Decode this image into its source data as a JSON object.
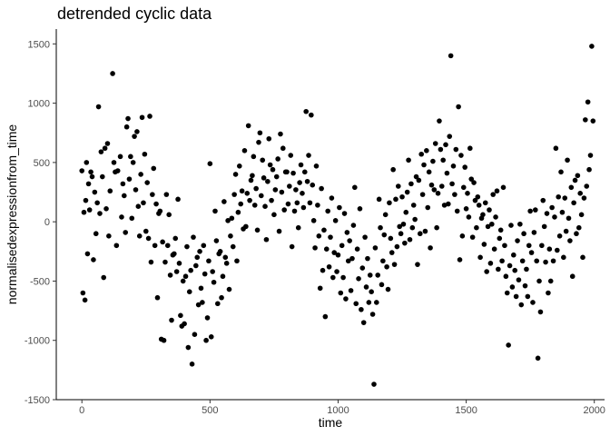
{
  "chart_data": {
    "type": "scatter",
    "title": "detrended cyclic data",
    "xlabel": "time",
    "ylabel": "normalisedexpressionfrom_time",
    "xlim": [
      -100,
      2040
    ],
    "ylim": [
      -1500,
      1625
    ],
    "x_ticks": [
      0,
      500,
      1000,
      1500,
      2000
    ],
    "y_ticks": [
      -1500,
      -1000,
      -500,
      0,
      500,
      1000,
      1500
    ],
    "x_tick_labels": [
      "0",
      "500",
      "1000",
      "1500",
      "2000"
    ],
    "y_tick_labels": [
      "-1500",
      "-1000",
      "-500",
      "0",
      "500",
      "1000",
      "1500"
    ],
    "grid": false,
    "legend": "none",
    "point_color": "#000000",
    "points": [
      [
        0,
        430
      ],
      [
        4,
        -600
      ],
      [
        8,
        80
      ],
      [
        12,
        -660
      ],
      [
        15,
        180
      ],
      [
        18,
        500
      ],
      [
        22,
        -270
      ],
      [
        26,
        320
      ],
      [
        30,
        100
      ],
      [
        35,
        420
      ],
      [
        40,
        380
      ],
      [
        45,
        -320
      ],
      [
        50,
        250
      ],
      [
        55,
        -100
      ],
      [
        60,
        160
      ],
      [
        65,
        970
      ],
      [
        70,
        70
      ],
      [
        75,
        590
      ],
      [
        80,
        380
      ],
      [
        85,
        -470
      ],
      [
        90,
        620
      ],
      [
        95,
        110
      ],
      [
        100,
        660
      ],
      [
        105,
        -120
      ],
      [
        110,
        260
      ],
      [
        120,
        1250
      ],
      [
        125,
        500
      ],
      [
        130,
        420
      ],
      [
        135,
        -200
      ],
      [
        140,
        430
      ],
      [
        150,
        550
      ],
      [
        155,
        40
      ],
      [
        160,
        320
      ],
      [
        165,
        220
      ],
      [
        170,
        -90
      ],
      [
        175,
        800
      ],
      [
        180,
        870
      ],
      [
        185,
        360
      ],
      [
        190,
        550
      ],
      [
        195,
        30
      ],
      [
        200,
        500
      ],
      [
        205,
        720
      ],
      [
        210,
        270
      ],
      [
        215,
        760
      ],
      [
        220,
        130
      ],
      [
        225,
        -120
      ],
      [
        230,
        400
      ],
      [
        235,
        880
      ],
      [
        240,
        160
      ],
      [
        245,
        570
      ],
      [
        250,
        -80
      ],
      [
        255,
        330
      ],
      [
        260,
        -140
      ],
      [
        265,
        890
      ],
      [
        270,
        -340
      ],
      [
        275,
        230
      ],
      [
        280,
        450
      ],
      [
        285,
        -200
      ],
      [
        290,
        150
      ],
      [
        295,
        -640
      ],
      [
        300,
        70
      ],
      [
        305,
        90
      ],
      [
        310,
        -990
      ],
      [
        315,
        -170
      ],
      [
        320,
        -1000
      ],
      [
        325,
        -340
      ],
      [
        330,
        230
      ],
      [
        335,
        -200
      ],
      [
        340,
        60
      ],
      [
        345,
        -450
      ],
      [
        350,
        -830
      ],
      [
        355,
        -280
      ],
      [
        360,
        -270
      ],
      [
        365,
        -140
      ],
      [
        370,
        -420
      ],
      [
        375,
        190
      ],
      [
        380,
        -350
      ],
      [
        385,
        -790
      ],
      [
        390,
        -880
      ],
      [
        395,
        -500
      ],
      [
        400,
        -860
      ],
      [
        405,
        -460
      ],
      [
        410,
        -210
      ],
      [
        415,
        -1060
      ],
      [
        420,
        -590
      ],
      [
        425,
        -410
      ],
      [
        430,
        -1200
      ],
      [
        435,
        -130
      ],
      [
        440,
        -950
      ],
      [
        445,
        -370
      ],
      [
        450,
        -300
      ],
      [
        455,
        -700
      ],
      [
        460,
        -250
      ],
      [
        465,
        -560
      ],
      [
        470,
        -680
      ],
      [
        475,
        -200
      ],
      [
        480,
        -440
      ],
      [
        485,
        -1000
      ],
      [
        490,
        -810
      ],
      [
        495,
        -330
      ],
      [
        500,
        490
      ],
      [
        505,
        -970
      ],
      [
        510,
        -420
      ],
      [
        515,
        -510
      ],
      [
        520,
        90
      ],
      [
        525,
        -160
      ],
      [
        530,
        -690
      ],
      [
        535,
        -270
      ],
      [
        540,
        -250
      ],
      [
        545,
        -640
      ],
      [
        550,
        -460
      ],
      [
        555,
        170
      ],
      [
        560,
        -300
      ],
      [
        565,
        -350
      ],
      [
        570,
        10
      ],
      [
        575,
        -570
      ],
      [
        580,
        -120
      ],
      [
        585,
        30
      ],
      [
        590,
        -210
      ],
      [
        595,
        230
      ],
      [
        600,
        400
      ],
      [
        605,
        -330
      ],
      [
        610,
        80
      ],
      [
        615,
        470
      ],
      [
        620,
        150
      ],
      [
        625,
        260
      ],
      [
        630,
        -60
      ],
      [
        635,
        600
      ],
      [
        640,
        -40
      ],
      [
        645,
        240
      ],
      [
        650,
        810
      ],
      [
        655,
        180
      ],
      [
        660,
        350
      ],
      [
        665,
        390
      ],
      [
        670,
        550
      ],
      [
        675,
        140
      ],
      [
        680,
        280
      ],
      [
        685,
        -70
      ],
      [
        690,
        670
      ],
      [
        695,
        750
      ],
      [
        700,
        220
      ],
      [
        705,
        520
      ],
      [
        710,
        370
      ],
      [
        715,
        130
      ],
      [
        720,
        -150
      ],
      [
        725,
        340
      ],
      [
        730,
        700
      ],
      [
        735,
        480
      ],
      [
        740,
        180
      ],
      [
        745,
        440
      ],
      [
        750,
        60
      ],
      [
        755,
        270
      ],
      [
        760,
        380
      ],
      [
        765,
        530
      ],
      [
        770,
        -80
      ],
      [
        775,
        740
      ],
      [
        780,
        250
      ],
      [
        785,
        620
      ],
      [
        790,
        100
      ],
      [
        795,
        420
      ],
      [
        800,
        420
      ],
      [
        805,
        150
      ],
      [
        810,
        300
      ],
      [
        815,
        560
      ],
      [
        820,
        -210
      ],
      [
        825,
        410
      ],
      [
        830,
        90
      ],
      [
        835,
        270
      ],
      [
        840,
        160
      ],
      [
        845,
        -50
      ],
      [
        850,
        330
      ],
      [
        855,
        480
      ],
      [
        860,
        240
      ],
      [
        865,
        120
      ],
      [
        870,
        420
      ],
      [
        875,
        930
      ],
      [
        880,
        340
      ],
      [
        885,
        560
      ],
      [
        890,
        160
      ],
      [
        895,
        900
      ],
      [
        900,
        310
      ],
      [
        905,
        10
      ],
      [
        910,
        -220
      ],
      [
        915,
        470
      ],
      [
        920,
        140
      ],
      [
        925,
        -120
      ],
      [
        930,
        -560
      ],
      [
        935,
        280
      ],
      [
        940,
        -410
      ],
      [
        945,
        -70
      ],
      [
        950,
        -800
      ],
      [
        955,
        -230
      ],
      [
        960,
        90
      ],
      [
        965,
        -380
      ],
      [
        970,
        -130
      ],
      [
        975,
        200
      ],
      [
        980,
        -470
      ],
      [
        985,
        -260
      ],
      [
        990,
        10
      ],
      [
        995,
        -420
      ],
      [
        1000,
        -280
      ],
      [
        1005,
        120
      ],
      [
        1010,
        -600
      ],
      [
        1015,
        -200
      ],
      [
        1020,
        -470
      ],
      [
        1025,
        70
      ],
      [
        1030,
        -650
      ],
      [
        1035,
        -90
      ],
      [
        1040,
        -330
      ],
      [
        1045,
        -160
      ],
      [
        1050,
        -580
      ],
      [
        1055,
        -310
      ],
      [
        1060,
        -30
      ],
      [
        1065,
        290
      ],
      [
        1070,
        -690
      ],
      [
        1075,
        -230
      ],
      [
        1080,
        -480
      ],
      [
        1085,
        110
      ],
      [
        1090,
        -740
      ],
      [
        1095,
        -390
      ],
      [
        1100,
        -850
      ],
      [
        1105,
        -130
      ],
      [
        1110,
        -550
      ],
      [
        1115,
        -310
      ],
      [
        1120,
        -680
      ],
      [
        1125,
        -450
      ],
      [
        1130,
        -590
      ],
      [
        1135,
        -780
      ],
      [
        1140,
        -1370
      ],
      [
        1145,
        -220
      ],
      [
        1150,
        -680
      ],
      [
        1155,
        -450
      ],
      [
        1160,
        190
      ],
      [
        1165,
        -50
      ],
      [
        1170,
        -530
      ],
      [
        1175,
        -330
      ],
      [
        1180,
        -110
      ],
      [
        1185,
        60
      ],
      [
        1190,
        -380
      ],
      [
        1195,
        -570
      ],
      [
        1200,
        160
      ],
      [
        1205,
        -140
      ],
      [
        1210,
        -260
      ],
      [
        1215,
        440
      ],
      [
        1220,
        -360
      ],
      [
        1225,
        190
      ],
      [
        1230,
        -210
      ],
      [
        1235,
        300
      ],
      [
        1240,
        -40
      ],
      [
        1245,
        -100
      ],
      [
        1250,
        210
      ],
      [
        1255,
        -20
      ],
      [
        1260,
        -180
      ],
      [
        1265,
        80
      ],
      [
        1270,
        250
      ],
      [
        1275,
        520
      ],
      [
        1280,
        -150
      ],
      [
        1285,
        320
      ],
      [
        1290,
        -50
      ],
      [
        1295,
        140
      ],
      [
        1300,
        20
      ],
      [
        1305,
        380
      ],
      [
        1310,
        -360
      ],
      [
        1315,
        350
      ],
      [
        1320,
        -100
      ],
      [
        1325,
        570
      ],
      [
        1330,
        230
      ],
      [
        1335,
        480
      ],
      [
        1340,
        -80
      ],
      [
        1345,
        600
      ],
      [
        1350,
        120
      ],
      [
        1355,
        420
      ],
      [
        1360,
        -220
      ],
      [
        1365,
        310
      ],
      [
        1370,
        510
      ],
      [
        1375,
        270
      ],
      [
        1380,
        660
      ],
      [
        1385,
        -50
      ],
      [
        1390,
        240
      ],
      [
        1395,
        850
      ],
      [
        1400,
        610
      ],
      [
        1405,
        300
      ],
      [
        1410,
        520
      ],
      [
        1415,
        140
      ],
      [
        1420,
        650
      ],
      [
        1425,
        410
      ],
      [
        1430,
        150
      ],
      [
        1435,
        720
      ],
      [
        1440,
        1400
      ],
      [
        1445,
        320
      ],
      [
        1450,
        470
      ],
      [
        1455,
        230
      ],
      [
        1460,
        610
      ],
      [
        1465,
        90
      ],
      [
        1470,
        970
      ],
      [
        1475,
        -320
      ],
      [
        1480,
        560
      ],
      [
        1485,
        -120
      ],
      [
        1490,
        290
      ],
      [
        1495,
        460
      ],
      [
        1500,
        110
      ],
      [
        1505,
        240
      ],
      [
        1510,
        40
      ],
      [
        1515,
        620
      ],
      [
        1520,
        360
      ],
      [
        1525,
        -130
      ],
      [
        1530,
        330
      ],
      [
        1535,
        180
      ],
      [
        1540,
        -50
      ],
      [
        1545,
        210
      ],
      [
        1550,
        140
      ],
      [
        1555,
        -300
      ],
      [
        1560,
        30
      ],
      [
        1565,
        60
      ],
      [
        1570,
        -190
      ],
      [
        1575,
        160
      ],
      [
        1580,
        -420
      ],
      [
        1585,
        -40
      ],
      [
        1590,
        100
      ],
      [
        1595,
        -350
      ],
      [
        1600,
        -20
      ],
      [
        1605,
        230
      ],
      [
        1610,
        -230
      ],
      [
        1615,
        40
      ],
      [
        1620,
        260
      ],
      [
        1625,
        -400
      ],
      [
        1630,
        -140
      ],
      [
        1635,
        -70
      ],
      [
        1640,
        -330
      ],
      [
        1645,
        290
      ],
      [
        1650,
        -200
      ],
      [
        1655,
        -460
      ],
      [
        1660,
        -600
      ],
      [
        1665,
        -1040
      ],
      [
        1670,
        -370
      ],
      [
        1675,
        -30
      ],
      [
        1680,
        -550
      ],
      [
        1685,
        -280
      ],
      [
        1690,
        -410
      ],
      [
        1695,
        -630
      ],
      [
        1700,
        -160
      ],
      [
        1705,
        -490
      ],
      [
        1710,
        -20
      ],
      [
        1715,
        -700
      ],
      [
        1720,
        -330
      ],
      [
        1725,
        -100
      ],
      [
        1730,
        -540
      ],
      [
        1735,
        -400
      ],
      [
        1740,
        -630
      ],
      [
        1745,
        -200
      ],
      [
        1750,
        90
      ],
      [
        1755,
        -260
      ],
      [
        1760,
        -680
      ],
      [
        1765,
        -90
      ],
      [
        1770,
        100
      ],
      [
        1775,
        -330
      ],
      [
        1780,
        -1150
      ],
      [
        1785,
        -500
      ],
      [
        1790,
        -760
      ],
      [
        1795,
        -200
      ],
      [
        1800,
        180
      ],
      [
        1805,
        -40
      ],
      [
        1810,
        -340
      ],
      [
        1815,
        70
      ],
      [
        1820,
        -600
      ],
      [
        1825,
        -230
      ],
      [
        1830,
        -500
      ],
      [
        1835,
        120
      ],
      [
        1840,
        -330
      ],
      [
        1845,
        40
      ],
      [
        1850,
        620
      ],
      [
        1855,
        -240
      ],
      [
        1860,
        210
      ],
      [
        1865,
        -120
      ],
      [
        1870,
        420
      ],
      [
        1875,
        80
      ],
      [
        1880,
        -300
      ],
      [
        1885,
        200
      ],
      [
        1890,
        -80
      ],
      [
        1895,
        520
      ],
      [
        1900,
        30
      ],
      [
        1905,
        -160
      ],
      [
        1910,
        290
      ],
      [
        1915,
        -460
      ],
      [
        1920,
        160
      ],
      [
        1925,
        350
      ],
      [
        1930,
        -100
      ],
      [
        1935,
        390
      ],
      [
        1940,
        -50
      ],
      [
        1945,
        240
      ],
      [
        1950,
        60
      ],
      [
        1955,
        -300
      ],
      [
        1960,
        200
      ],
      [
        1965,
        860
      ],
      [
        1970,
        300
      ],
      [
        1975,
        1010
      ],
      [
        1980,
        440
      ],
      [
        1985,
        560
      ],
      [
        1990,
        1480
      ],
      [
        1995,
        850
      ]
    ]
  }
}
